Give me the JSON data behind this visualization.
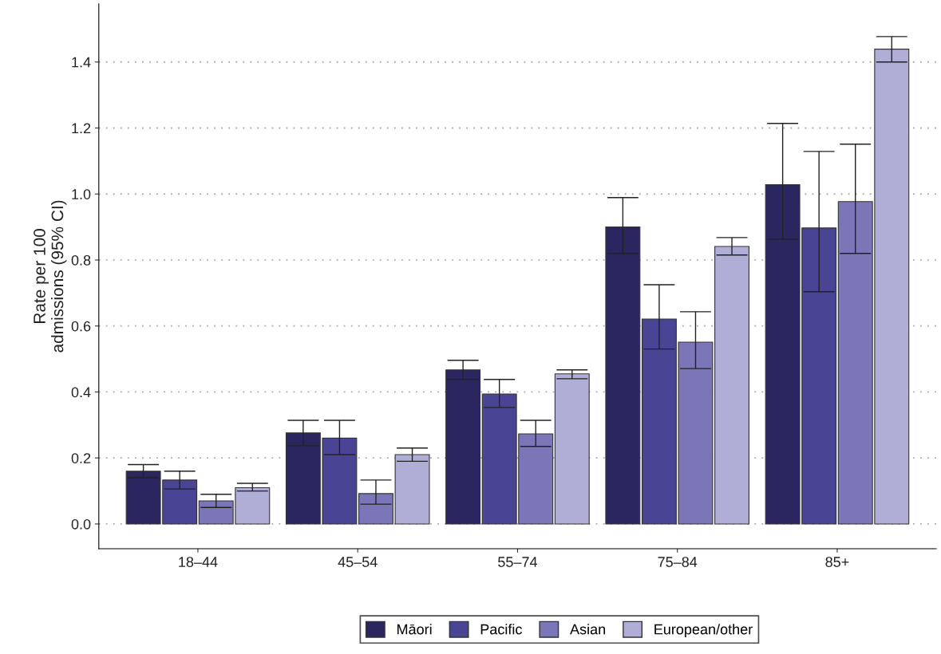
{
  "chart_data": {
    "type": "bar",
    "ylabel": "Rate per 100\nadmissions (95% CI)",
    "categories": [
      "18–44",
      "45–54",
      "55–74",
      "75–84",
      "85+"
    ],
    "series": [
      {
        "name": "Māori",
        "color": "#2b2660",
        "values": [
          0.16,
          0.276,
          0.467,
          0.9,
          1.028
        ],
        "errors": [
          [
            0.14,
            0.18
          ],
          [
            0.237,
            0.314
          ],
          [
            0.438,
            0.496
          ],
          [
            0.82,
            0.989
          ],
          [
            0.863,
            1.214
          ]
        ]
      },
      {
        "name": "Pacific",
        "color": "#4a4494",
        "values": [
          0.133,
          0.26,
          0.394,
          0.621,
          0.897
        ],
        "errors": [
          [
            0.106,
            0.16
          ],
          [
            0.21,
            0.314
          ],
          [
            0.353,
            0.438
          ],
          [
            0.53,
            0.725
          ],
          [
            0.704,
            1.129
          ]
        ]
      },
      {
        "name": "Asian",
        "color": "#7a76b8",
        "values": [
          0.07,
          0.092,
          0.273,
          0.551,
          0.977
        ],
        "errors": [
          [
            0.05,
            0.09
          ],
          [
            0.06,
            0.133
          ],
          [
            0.235,
            0.314
          ],
          [
            0.471,
            0.643
          ],
          [
            0.82,
            1.151
          ]
        ]
      },
      {
        "name": "European/other",
        "color": "#b0aed6",
        "values": [
          0.11,
          0.21,
          0.455,
          0.841,
          1.439
        ],
        "errors": [
          [
            0.1,
            0.123
          ],
          [
            0.19,
            0.23
          ],
          [
            0.44,
            0.467
          ],
          [
            0.815,
            0.868
          ],
          [
            1.4,
            1.477
          ]
        ]
      }
    ],
    "ylim": [
      -0.075,
      1.576
    ],
    "yticks": [
      {
        "value": 0,
        "label": "0.0"
      },
      {
        "value": 0.2,
        "label": "0.2"
      },
      {
        "value": 0.4,
        "label": "0.4"
      },
      {
        "value": 0.6,
        "label": "0.6"
      },
      {
        "value": 0.8,
        "label": "0.8"
      },
      {
        "value": 1.0,
        "label": "1.0"
      },
      {
        "value": 1.2,
        "label": "1.2"
      },
      {
        "value": 1.4,
        "label": "1.4"
      }
    ],
    "grid": "y",
    "legend": "bottom"
  }
}
